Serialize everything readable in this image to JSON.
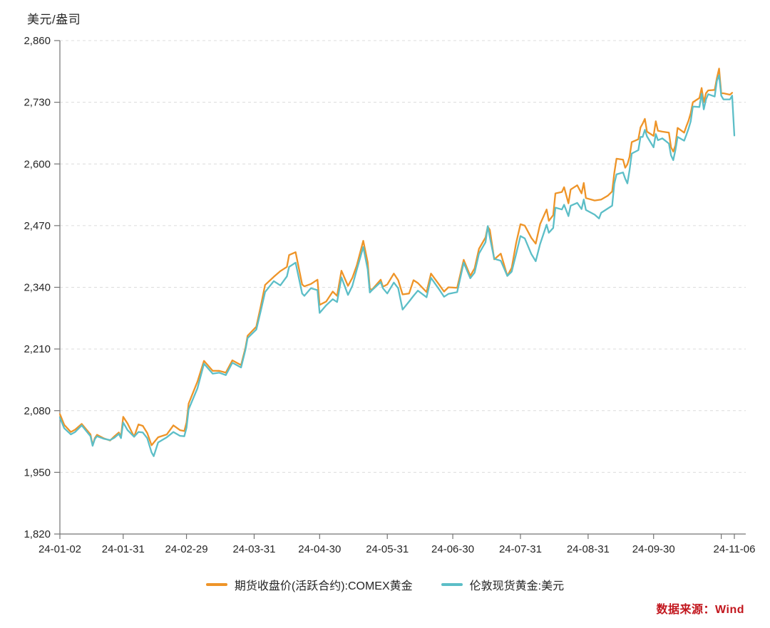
{
  "source": {
    "label": "数据来源：Wind",
    "color": "#C2171E"
  },
  "chart_data": {
    "type": "line",
    "title": "",
    "xlabel": "",
    "ylabel": "美元/盎司",
    "ylim": [
      1820,
      2860
    ],
    "y_ticks": [
      2860,
      2730,
      2600,
      2470,
      2340,
      2210,
      2080,
      1950,
      1820
    ],
    "x_max_day": 309,
    "grid": "horizontal-dashed",
    "legend_position": "bottom-center",
    "colors": {
      "grid": "#dcdcdc",
      "axis": "#737373",
      "tick_text": "#262626"
    },
    "x_ticks": [
      {
        "day": 0,
        "label": "24-01-02"
      },
      {
        "day": 29,
        "label": "24-01-31"
      },
      {
        "day": 58,
        "label": "24-02-29"
      },
      {
        "day": 89,
        "label": "24-03-31"
      },
      {
        "day": 119,
        "label": "24-04-30"
      },
      {
        "day": 150,
        "label": "24-05-31"
      },
      {
        "day": 180,
        "label": "24-06-30"
      },
      {
        "day": 211,
        "label": "24-07-31"
      },
      {
        "day": 242,
        "label": "24-08-31"
      },
      {
        "day": 272,
        "label": "24-09-30"
      },
      {
        "day": 303,
        "label": ""
      },
      {
        "day": 309,
        "label": "24-11-06"
      }
    ],
    "series": [
      {
        "name": "期货收盘价(活跃合约):COMEX黄金",
        "color": "#EE9428",
        "points": [
          [
            0,
            2073
          ],
          [
            2,
            2050
          ],
          [
            5,
            2035
          ],
          [
            7,
            2040
          ],
          [
            10,
            2052
          ],
          [
            14,
            2030
          ],
          [
            15,
            2007
          ],
          [
            16,
            2022
          ],
          [
            17,
            2029
          ],
          [
            20,
            2022
          ],
          [
            23,
            2017
          ],
          [
            25,
            2026
          ],
          [
            27,
            2034
          ],
          [
            28,
            2025
          ],
          [
            29,
            2067
          ],
          [
            31,
            2053
          ],
          [
            34,
            2025
          ],
          [
            36,
            2051
          ],
          [
            38,
            2048
          ],
          [
            40,
            2033
          ],
          [
            42,
            2007
          ],
          [
            45,
            2024
          ],
          [
            49,
            2030
          ],
          [
            52,
            2049
          ],
          [
            55,
            2039
          ],
          [
            57,
            2037
          ],
          [
            58,
            2055
          ],
          [
            59,
            2095
          ],
          [
            63,
            2141
          ],
          [
            66,
            2185
          ],
          [
            70,
            2164
          ],
          [
            73,
            2164
          ],
          [
            76,
            2160
          ],
          [
            79,
            2186
          ],
          [
            83,
            2176
          ],
          [
            85,
            2212
          ],
          [
            86,
            2238
          ],
          [
            90,
            2257
          ],
          [
            92,
            2300
          ],
          [
            94,
            2345
          ],
          [
            98,
            2362
          ],
          [
            101,
            2374
          ],
          [
            104,
            2383
          ],
          [
            105,
            2408
          ],
          [
            108,
            2414
          ],
          [
            111,
            2346
          ],
          [
            112,
            2342
          ],
          [
            115,
            2347
          ],
          [
            118,
            2356
          ],
          [
            119,
            2303
          ],
          [
            122,
            2310
          ],
          [
            125,
            2331
          ],
          [
            127,
            2322
          ],
          [
            129,
            2375
          ],
          [
            132,
            2343
          ],
          [
            134,
            2360
          ],
          [
            136,
            2386
          ],
          [
            139,
            2438
          ],
          [
            141,
            2393
          ],
          [
            142,
            2337
          ],
          [
            143,
            2335
          ],
          [
            147,
            2356
          ],
          [
            148,
            2341
          ],
          [
            150,
            2346
          ],
          [
            153,
            2369
          ],
          [
            155,
            2355
          ],
          [
            157,
            2325
          ],
          [
            160,
            2327
          ],
          [
            162,
            2355
          ],
          [
            164,
            2349
          ],
          [
            168,
            2330
          ],
          [
            170,
            2369
          ],
          [
            174,
            2344
          ],
          [
            176,
            2331
          ],
          [
            178,
            2340
          ],
          [
            182,
            2339
          ],
          [
            185,
            2398
          ],
          [
            188,
            2364
          ],
          [
            190,
            2380
          ],
          [
            192,
            2421
          ],
          [
            195,
            2445
          ],
          [
            196,
            2468
          ],
          [
            197,
            2461
          ],
          [
            199,
            2399
          ],
          [
            202,
            2411
          ],
          [
            205,
            2364
          ],
          [
            207,
            2381
          ],
          [
            209,
            2433
          ],
          [
            211,
            2473
          ],
          [
            213,
            2470
          ],
          [
            216,
            2444
          ],
          [
            218,
            2432
          ],
          [
            220,
            2473
          ],
          [
            223,
            2504
          ],
          [
            224,
            2480
          ],
          [
            226,
            2492
          ],
          [
            227,
            2538
          ],
          [
            230,
            2541
          ],
          [
            231,
            2551
          ],
          [
            233,
            2517
          ],
          [
            234,
            2546
          ],
          [
            237,
            2555
          ],
          [
            239,
            2538
          ],
          [
            240,
            2560
          ],
          [
            241,
            2528
          ],
          [
            245,
            2523
          ],
          [
            248,
            2525
          ],
          [
            251,
            2533
          ],
          [
            253,
            2542
          ],
          [
            254,
            2581
          ],
          [
            255,
            2611
          ],
          [
            258,
            2609
          ],
          [
            259,
            2592
          ],
          [
            260,
            2599
          ],
          [
            261,
            2615
          ],
          [
            262,
            2646
          ],
          [
            265,
            2652
          ],
          [
            266,
            2677
          ],
          [
            267,
            2685
          ],
          [
            268,
            2695
          ],
          [
            269,
            2668
          ],
          [
            272,
            2659
          ],
          [
            273,
            2690
          ],
          [
            274,
            2670
          ],
          [
            276,
            2668
          ],
          [
            279,
            2666
          ],
          [
            280,
            2635
          ],
          [
            281,
            2626
          ],
          [
            282,
            2639
          ],
          [
            283,
            2676
          ],
          [
            286,
            2666
          ],
          [
            287,
            2679
          ],
          [
            288,
            2691
          ],
          [
            289,
            2707
          ],
          [
            290,
            2730
          ],
          [
            293,
            2739
          ],
          [
            294,
            2760
          ],
          [
            295,
            2730
          ],
          [
            296,
            2749
          ],
          [
            297,
            2755
          ],
          [
            300,
            2756
          ],
          [
            301,
            2781
          ],
          [
            302,
            2801
          ],
          [
            303,
            2749
          ],
          [
            304,
            2749
          ],
          [
            307,
            2746
          ],
          [
            308,
            2750
          ]
        ]
      },
      {
        "name": "伦敦现货黄金:美元",
        "color": "#5CBEC7",
        "points": [
          [
            0,
            2065
          ],
          [
            2,
            2043
          ],
          [
            5,
            2030
          ],
          [
            7,
            2035
          ],
          [
            10,
            2049
          ],
          [
            14,
            2026
          ],
          [
            15,
            2006
          ],
          [
            16,
            2020
          ],
          [
            17,
            2026
          ],
          [
            20,
            2021
          ],
          [
            23,
            2018
          ],
          [
            25,
            2023
          ],
          [
            27,
            2031
          ],
          [
            28,
            2022
          ],
          [
            29,
            2055
          ],
          [
            31,
            2039
          ],
          [
            34,
            2025
          ],
          [
            36,
            2035
          ],
          [
            38,
            2034
          ],
          [
            40,
            2022
          ],
          [
            42,
            1992
          ],
          [
            43,
            1984
          ],
          [
            45,
            2013
          ],
          [
            49,
            2024
          ],
          [
            52,
            2035
          ],
          [
            55,
            2027
          ],
          [
            57,
            2026
          ],
          [
            58,
            2044
          ],
          [
            59,
            2083
          ],
          [
            63,
            2127
          ],
          [
            66,
            2179
          ],
          [
            70,
            2158
          ],
          [
            73,
            2160
          ],
          [
            76,
            2155
          ],
          [
            79,
            2181
          ],
          [
            83,
            2171
          ],
          [
            85,
            2208
          ],
          [
            86,
            2233
          ],
          [
            90,
            2251
          ],
          [
            92,
            2290
          ],
          [
            94,
            2330
          ],
          [
            98,
            2353
          ],
          [
            101,
            2344
          ],
          [
            104,
            2363
          ],
          [
            105,
            2383
          ],
          [
            108,
            2392
          ],
          [
            111,
            2327
          ],
          [
            112,
            2322
          ],
          [
            115,
            2338
          ],
          [
            118,
            2334
          ],
          [
            119,
            2286
          ],
          [
            122,
            2302
          ],
          [
            125,
            2315
          ],
          [
            127,
            2309
          ],
          [
            129,
            2361
          ],
          [
            132,
            2324
          ],
          [
            134,
            2343
          ],
          [
            136,
            2377
          ],
          [
            139,
            2425
          ],
          [
            141,
            2378
          ],
          [
            142,
            2329
          ],
          [
            143,
            2334
          ],
          [
            147,
            2351
          ],
          [
            148,
            2338
          ],
          [
            150,
            2327
          ],
          [
            153,
            2350
          ],
          [
            155,
            2338
          ],
          [
            157,
            2293
          ],
          [
            160,
            2310
          ],
          [
            162,
            2322
          ],
          [
            164,
            2333
          ],
          [
            168,
            2319
          ],
          [
            170,
            2360
          ],
          [
            174,
            2334
          ],
          [
            176,
            2320
          ],
          [
            178,
            2326
          ],
          [
            182,
            2330
          ],
          [
            185,
            2392
          ],
          [
            188,
            2359
          ],
          [
            190,
            2371
          ],
          [
            192,
            2411
          ],
          [
            195,
            2435
          ],
          [
            196,
            2469
          ],
          [
            197,
            2445
          ],
          [
            199,
            2400
          ],
          [
            202,
            2396
          ],
          [
            205,
            2364
          ],
          [
            207,
            2373
          ],
          [
            209,
            2410
          ],
          [
            211,
            2448
          ],
          [
            213,
            2443
          ],
          [
            216,
            2410
          ],
          [
            218,
            2395
          ],
          [
            220,
            2431
          ],
          [
            223,
            2472
          ],
          [
            224,
            2455
          ],
          [
            226,
            2465
          ],
          [
            227,
            2508
          ],
          [
            230,
            2504
          ],
          [
            231,
            2514
          ],
          [
            233,
            2490
          ],
          [
            234,
            2512
          ],
          [
            237,
            2518
          ],
          [
            239,
            2505
          ],
          [
            240,
            2525
          ],
          [
            241,
            2503
          ],
          [
            245,
            2493
          ],
          [
            247,
            2485
          ],
          [
            248,
            2497
          ],
          [
            251,
            2506
          ],
          [
            253,
            2512
          ],
          [
            254,
            2558
          ],
          [
            255,
            2578
          ],
          [
            258,
            2582
          ],
          [
            259,
            2569
          ],
          [
            260,
            2559
          ],
          [
            261,
            2587
          ],
          [
            262,
            2622
          ],
          [
            265,
            2629
          ],
          [
            266,
            2657
          ],
          [
            267,
            2657
          ],
          [
            268,
            2672
          ],
          [
            269,
            2658
          ],
          [
            272,
            2635
          ],
          [
            273,
            2663
          ],
          [
            274,
            2650
          ],
          [
            276,
            2654
          ],
          [
            279,
            2643
          ],
          [
            280,
            2618
          ],
          [
            281,
            2608
          ],
          [
            282,
            2629
          ],
          [
            283,
            2657
          ],
          [
            286,
            2649
          ],
          [
            287,
            2661
          ],
          [
            288,
            2674
          ],
          [
            289,
            2690
          ],
          [
            290,
            2721
          ],
          [
            293,
            2720
          ],
          [
            294,
            2748
          ],
          [
            295,
            2715
          ],
          [
            296,
            2736
          ],
          [
            297,
            2747
          ],
          [
            300,
            2742
          ],
          [
            301,
            2775
          ],
          [
            302,
            2787
          ],
          [
            303,
            2744
          ],
          [
            304,
            2736
          ],
          [
            307,
            2736
          ],
          [
            308,
            2744
          ],
          [
            309,
            2660
          ]
        ]
      }
    ]
  }
}
